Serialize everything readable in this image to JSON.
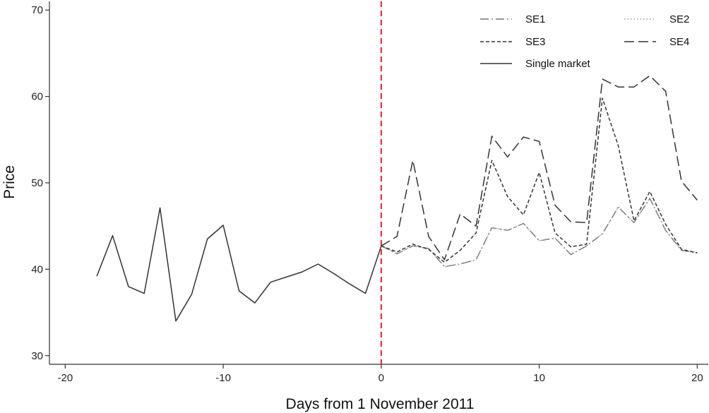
{
  "chart_data": {
    "type": "line",
    "title": "",
    "xlabel": "Days from 1 November 2011",
    "ylabel": "Price",
    "xlim": [
      -21,
      20.7
    ],
    "ylim": [
      29,
      71
    ],
    "x_ticks": [
      -20,
      -10,
      0,
      10,
      20
    ],
    "x_tick_labels": [
      "-20",
      "-10",
      "0",
      "10",
      "20"
    ],
    "y_ticks": [
      30,
      40,
      50,
      60,
      70
    ],
    "y_tick_labels": [
      "30",
      "40",
      "50",
      "60",
      "70"
    ],
    "grid": false,
    "legend_position": "top-right",
    "reference_line": {
      "x": 0,
      "color": "#e8202a",
      "style": "dashed"
    },
    "series": [
      {
        "name": "SE1",
        "dash": "dashdot",
        "color": "#777777",
        "x": [
          0,
          1,
          2,
          3,
          4,
          5,
          6,
          7,
          8,
          9,
          10,
          11,
          12,
          13,
          14,
          15,
          16,
          17,
          18,
          19,
          20
        ],
        "y": [
          42.7,
          41.8,
          42.7,
          42.4,
          40.3,
          40.6,
          41.1,
          44.8,
          44.5,
          45.3,
          43.3,
          43.6,
          41.7,
          42.7,
          44.1,
          47.2,
          45.4,
          48.2,
          44.5,
          42.2,
          41.9
        ]
      },
      {
        "name": "SE2",
        "dash": "dotted",
        "color": "#999999",
        "x": [
          0,
          1,
          2,
          3,
          4,
          5,
          6,
          7,
          8,
          9,
          10,
          11,
          12,
          13,
          14,
          15,
          16,
          17,
          18,
          19,
          20
        ],
        "y": [
          42.7,
          41.8,
          42.7,
          42.4,
          40.3,
          40.6,
          41.1,
          44.8,
          44.5,
          45.3,
          43.3,
          43.6,
          41.7,
          42.7,
          44.1,
          47.2,
          45.4,
          48.2,
          44.5,
          42.2,
          41.9
        ]
      },
      {
        "name": "SE3",
        "dash": "shortdash",
        "color": "#333333",
        "x": [
          0,
          1,
          2,
          3,
          4,
          5,
          6,
          7,
          8,
          9,
          10,
          11,
          12,
          13,
          14,
          15,
          16,
          17,
          18,
          19,
          20
        ],
        "y": [
          42.7,
          42.0,
          42.9,
          42.3,
          40.8,
          42.2,
          44.2,
          52.6,
          48.4,
          46.3,
          51.2,
          44.2,
          42.6,
          42.9,
          59.8,
          54.3,
          45.6,
          49.0,
          45.2,
          42.3,
          41.9
        ]
      },
      {
        "name": "SE4",
        "dash": "longdash",
        "color": "#333333",
        "x": [
          0,
          1,
          2,
          3,
          4,
          5,
          6,
          7,
          8,
          9,
          10,
          11,
          12,
          13,
          14,
          15,
          16,
          17,
          18,
          19,
          20
        ],
        "y": [
          42.7,
          43.8,
          52.6,
          43.8,
          41.1,
          46.4,
          45.0,
          55.4,
          53.0,
          55.3,
          54.8,
          47.4,
          45.5,
          45.4,
          62.0,
          61.1,
          61.1,
          62.4,
          60.6,
          50.2,
          48.0
        ]
      },
      {
        "name": "Single market",
        "dash": "solid",
        "color": "#333333",
        "x": [
          -18,
          -17,
          -16,
          -15,
          -14,
          -13,
          -12,
          -11,
          -10,
          -9,
          -8,
          -7,
          -6,
          -5,
          -4,
          -3,
          -2,
          -1,
          0
        ],
        "y": [
          39.2,
          43.9,
          38.0,
          37.2,
          47.1,
          34.0,
          37.1,
          43.5,
          45.1,
          37.5,
          36.1,
          38.5,
          39.1,
          39.7,
          40.6,
          39.5,
          38.3,
          37.2,
          42.7
        ]
      }
    ]
  }
}
